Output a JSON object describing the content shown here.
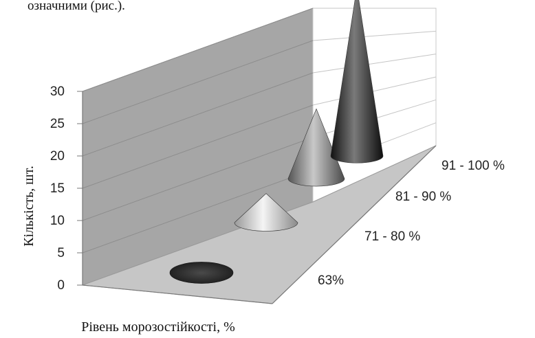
{
  "caption_fragment": "означними (рис.).",
  "chart_data": {
    "type": "bar",
    "style": "3d-cone",
    "categories": [
      "63%",
      "71 - 80 %",
      "81 - 90 %",
      "91 - 100 %"
    ],
    "values": [
      0,
      5,
      12,
      29
    ],
    "xlabel": "Рівень морозостійкості, %",
    "ylabel": "Кількість, шт.",
    "ylim": [
      0,
      30
    ],
    "yticks": [
      0,
      5,
      10,
      15,
      20,
      25,
      30
    ],
    "grid": true,
    "legend": "none",
    "colors": [
      "#2a2a2a",
      "#d9d9d9",
      "#8f8f8f",
      "#3a3a3a"
    ]
  }
}
